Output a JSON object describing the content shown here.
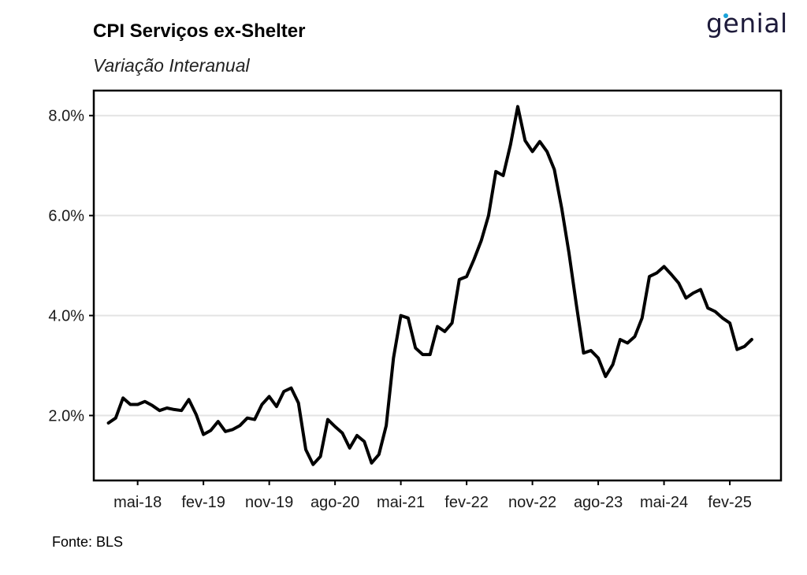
{
  "header": {
    "title": "CPI Serviços ex-Shelter",
    "subtitle": "Variação Interanual",
    "logo": "genial"
  },
  "caption": "Fonte: BLS",
  "colors": {
    "line": "#000000",
    "grid": "#e3e3e3",
    "logo": "#1d1a3a",
    "logo_accent": "#1aa3d9"
  },
  "chart_data": {
    "type": "line",
    "title": "CPI Serviços ex-Shelter",
    "subtitle": "Variação Interanual",
    "xlabel": "",
    "ylabel": "",
    "x_tick_labels": [
      "mai-18",
      "fev-19",
      "nov-19",
      "ago-20",
      "mai-21",
      "fev-22",
      "nov-22",
      "ago-23",
      "mai-24",
      "fev-25"
    ],
    "y_tick_labels": [
      "2.0%",
      "4.0%",
      "6.0%",
      "8.0%"
    ],
    "y_ticks": [
      2,
      4,
      6,
      8
    ],
    "ylim": [
      0.7,
      8.5
    ],
    "xlim": [
      "2017-11",
      "2025-09"
    ],
    "grid": "horizontal",
    "legend": "none",
    "series": [
      {
        "x": [
          "2018-01",
          "2018-02",
          "2018-03",
          "2018-04",
          "2018-05",
          "2018-06",
          "2018-07",
          "2018-08",
          "2018-09",
          "2018-10",
          "2018-11",
          "2018-12",
          "2019-01",
          "2019-02",
          "2019-03",
          "2019-04",
          "2019-05",
          "2019-06",
          "2019-07",
          "2019-08",
          "2019-09",
          "2019-10",
          "2019-11",
          "2019-12",
          "2020-01",
          "2020-02",
          "2020-03",
          "2020-04",
          "2020-05",
          "2020-06",
          "2020-07",
          "2020-08",
          "2020-09",
          "2020-10",
          "2020-11",
          "2020-12",
          "2021-01",
          "2021-02",
          "2021-03",
          "2021-04",
          "2021-05",
          "2021-06",
          "2021-07",
          "2021-08",
          "2021-09",
          "2021-10",
          "2021-11",
          "2021-12",
          "2022-01",
          "2022-02",
          "2022-03",
          "2022-04",
          "2022-05",
          "2022-06",
          "2022-07",
          "2022-08",
          "2022-09",
          "2022-10",
          "2022-11",
          "2022-12",
          "2023-01",
          "2023-02",
          "2023-03",
          "2023-04",
          "2023-05",
          "2023-06",
          "2023-07",
          "2023-08",
          "2023-09",
          "2023-10",
          "2023-11",
          "2023-12",
          "2024-01",
          "2024-02",
          "2024-03",
          "2024-04",
          "2024-05",
          "2024-06",
          "2024-07",
          "2024-08",
          "2024-09",
          "2024-10",
          "2024-11",
          "2024-12",
          "2025-01",
          "2025-02",
          "2025-03",
          "2025-04",
          "2025-05"
        ],
        "values": [
          1.85,
          1.95,
          2.35,
          2.22,
          2.22,
          2.28,
          2.2,
          2.1,
          2.15,
          2.12,
          2.1,
          2.32,
          2.02,
          1.62,
          1.7,
          1.88,
          1.68,
          1.72,
          1.8,
          1.95,
          1.92,
          2.22,
          2.38,
          2.18,
          2.48,
          2.55,
          2.25,
          1.32,
          1.02,
          1.18,
          1.92,
          1.78,
          1.65,
          1.35,
          1.6,
          1.48,
          1.05,
          1.22,
          1.8,
          3.15,
          4.0,
          3.95,
          3.35,
          3.22,
          3.22,
          3.78,
          3.68,
          3.85,
          4.72,
          4.78,
          5.12,
          5.5,
          6.0,
          6.88,
          6.8,
          7.42,
          8.18,
          7.5,
          7.28,
          7.48,
          7.28,
          6.92,
          6.15,
          5.25,
          4.22,
          3.25,
          3.3,
          3.15,
          2.78,
          3.02,
          3.52,
          3.45,
          3.58,
          3.95,
          4.78,
          4.85,
          4.98,
          4.82,
          4.65,
          4.35,
          4.45,
          4.52,
          4.15,
          4.08,
          3.95,
          3.85,
          3.32,
          3.38,
          3.52
        ]
      }
    ]
  }
}
